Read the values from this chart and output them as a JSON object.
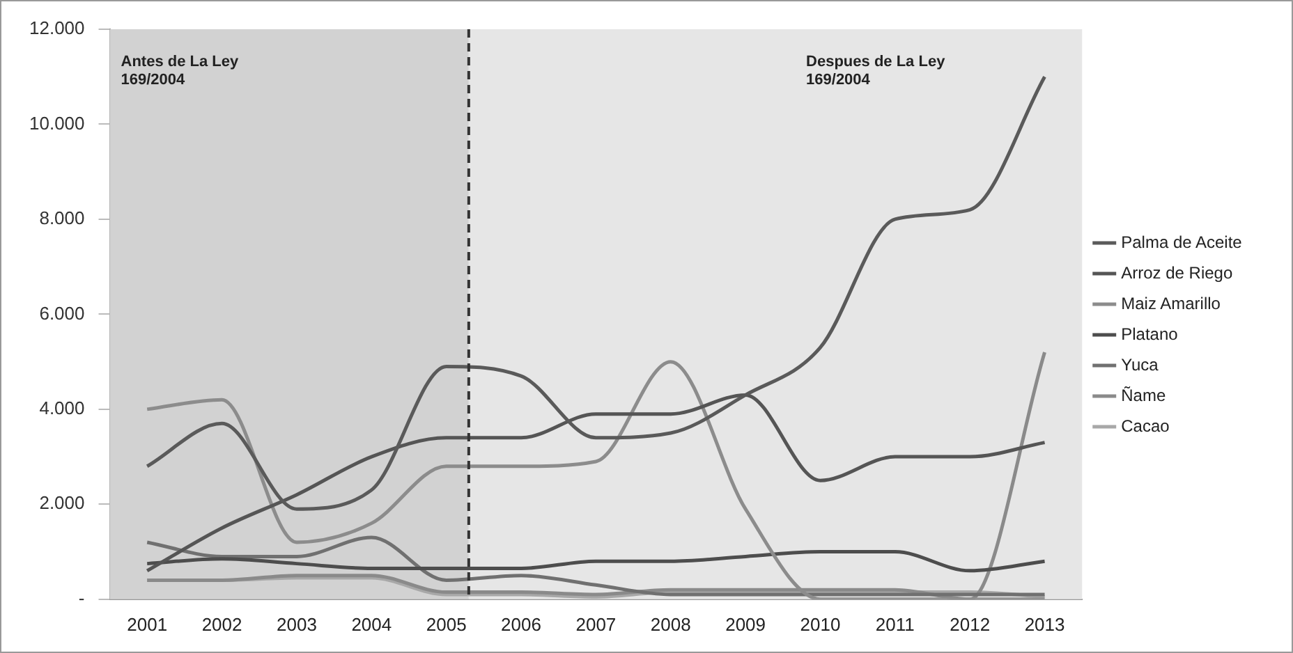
{
  "chart_data": {
    "type": "line",
    "x": [
      2001,
      2002,
      2003,
      2004,
      2005,
      2006,
      2007,
      2008,
      2009,
      2010,
      2011,
      2012,
      2013
    ],
    "xlim": [
      2000.5,
      2013.5
    ],
    "xticks": [
      {
        "value": 2001,
        "label": "2001"
      },
      {
        "value": 2002,
        "label": "2002"
      },
      {
        "value": 2003,
        "label": "2003"
      },
      {
        "value": 2004,
        "label": "2004"
      },
      {
        "value": 2005,
        "label": "2005"
      },
      {
        "value": 2006,
        "label": "2006"
      },
      {
        "value": 2007,
        "label": "2007"
      },
      {
        "value": 2008,
        "label": "2008"
      },
      {
        "value": 2009,
        "label": "2009"
      },
      {
        "value": 2010,
        "label": "2010"
      },
      {
        "value": 2011,
        "label": "2011"
      },
      {
        "value": 2012,
        "label": "2012"
      },
      {
        "value": 2013,
        "label": "2013"
      }
    ],
    "ylim": [
      0,
      12000
    ],
    "yticks": [
      {
        "value": 0,
        "label": "-"
      },
      {
        "value": 2000,
        "label": "2.000"
      },
      {
        "value": 4000,
        "label": "4.000"
      },
      {
        "value": 6000,
        "label": "6.000"
      },
      {
        "value": 8000,
        "label": "8.000"
      },
      {
        "value": 10000,
        "label": "10.000"
      },
      {
        "value": 12000,
        "label": "12.000"
      }
    ],
    "series": [
      {
        "name": "Palma de Aceite",
        "color": "#5a5a5a",
        "values": [
          2800,
          3700,
          1900,
          2300,
          4900,
          4700,
          3400,
          3500,
          4300,
          5300,
          8000,
          8200,
          11000
        ]
      },
      {
        "name": "Arroz de Riego",
        "color": "#555555",
        "values": [
          600,
          1500,
          2200,
          3000,
          3400,
          3400,
          3900,
          3900,
          4300,
          2500,
          3000,
          3000,
          3300
        ]
      },
      {
        "name": "Maiz Amarillo",
        "color": "#8c8c8c",
        "values": [
          4000,
          4200,
          1200,
          1600,
          2800,
          2800,
          2900,
          5000,
          1900,
          0,
          0,
          0,
          0
        ]
      },
      {
        "name": "Platano",
        "color": "#4d4d4d",
        "values": [
          750,
          850,
          750,
          650,
          650,
          650,
          800,
          800,
          900,
          1000,
          1000,
          600,
          800
        ]
      },
      {
        "name": "Yuca",
        "color": "#707070",
        "values": [
          1200,
          900,
          900,
          1300,
          400,
          500,
          300,
          100,
          100,
          100,
          100,
          100,
          100
        ]
      },
      {
        "name": "Ñame",
        "color": "#8a8a8a",
        "values": [
          400,
          400,
          500,
          500,
          150,
          150,
          100,
          200,
          200,
          200,
          200,
          0,
          5200
        ]
      },
      {
        "name": "Cacao",
        "color": "#a8a8a8",
        "values": [
          400,
          400,
          450,
          450,
          100,
          100,
          50,
          150,
          150,
          150,
          150,
          150,
          50
        ]
      }
    ],
    "bands": [
      {
        "axis": "x",
        "from": 2000.5,
        "to": 2005.3,
        "label": "Antes de La Ley 169/2004",
        "color": "#d2d2d2"
      },
      {
        "axis": "x",
        "from": 2005.3,
        "to": 2013.5,
        "label": "Despues de La Ley 169/2004",
        "color": "#e6e6e6"
      }
    ],
    "ref_lines": [
      {
        "axis": "x",
        "value": 2005.3,
        "line_style": "dashed",
        "color": "#333333"
      }
    ],
    "legend": "right",
    "grid": false,
    "marker": "none",
    "line_style": "solid"
  }
}
